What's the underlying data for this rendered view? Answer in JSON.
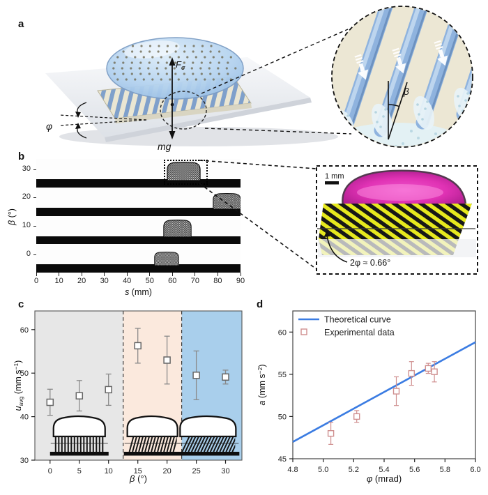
{
  "figure_labels": {
    "a": "a",
    "b": "b",
    "c": "c",
    "d": "d"
  },
  "panel_a": {
    "phi_label": "φ",
    "force_main": "F",
    "force_sub": "σ",
    "weight_label": "mg",
    "beta_label": "β"
  },
  "panel_b": {
    "ylabel_var": "β",
    "ylabel_rest": " (°)",
    "xlabel_var": "s",
    "xlabel_rest": " (mm)",
    "inset": {
      "scale_label": "1 mm",
      "angle_label": "2φ ≈ 0.66°"
    }
  },
  "panel_c_labels": {
    "ylabel_var": "u",
    "ylabel_sub": "avg",
    "ylabel_rest": " (mm s",
    "ylabel_sup": "−1",
    "ylabel_close": ")",
    "xlabel_var": "β",
    "xlabel_rest": " (°)"
  },
  "panel_d_labels": {
    "ylabel_var": "a",
    "ylabel_rest": " (mm s",
    "ylabel_sup": "−2",
    "ylabel_close": ")",
    "xlabel_var": "φ",
    "xlabel_rest": " (mrad)"
  },
  "chart_data": [
    {
      "panel": "b",
      "type": "image-strip",
      "x_label": "s (mm)",
      "y_label": "β (°)",
      "xticks": [
        0,
        10,
        20,
        30,
        40,
        50,
        60,
        70,
        80,
        90
      ],
      "xlim": [
        0,
        90
      ],
      "rows": [
        {
          "beta": 30,
          "s_mm": 65,
          "width_mm": 15
        },
        {
          "beta": 20,
          "s_mm": 84,
          "width_mm": 12.5
        },
        {
          "beta": 10,
          "s_mm": 62,
          "width_mm": 12.5
        },
        {
          "beta": 0,
          "s_mm": 57.5,
          "width_mm": 11
        }
      ],
      "highlight_beta": 30
    },
    {
      "panel": "c",
      "type": "scatter",
      "title": "",
      "xlabel": "β (°)",
      "ylabel": "uavg (mm s−1)",
      "x": [
        0,
        5,
        10,
        15,
        20,
        25,
        30
      ],
      "y": [
        43.3,
        44.8,
        46.2,
        56.3,
        53.0,
        49.5,
        49.1
      ],
      "yerr": [
        3.0,
        3.5,
        3.6,
        4.0,
        5.5,
        5.6,
        1.6
      ],
      "xlim": [
        -2.6,
        32.8
      ],
      "ylim": [
        30,
        64.3
      ],
      "xticks": [
        0,
        5,
        10,
        15,
        20,
        25,
        30
      ],
      "yticks": [
        30,
        40,
        50,
        60
      ],
      "regions": [
        {
          "from": -2.6,
          "to": 12.5,
          "color": "#e7e7e7"
        },
        {
          "from": 12.5,
          "to": 22.5,
          "color": "#fbe9dd"
        },
        {
          "from": 22.5,
          "to": 32.8,
          "color": "#a9cfec"
        }
      ],
      "separators": [
        12.5,
        22.5
      ],
      "inset_pillar_tilts_deg": [
        0,
        15,
        25
      ],
      "marker_color": "#666666",
      "errorbar_color": "#8a8a8a"
    },
    {
      "panel": "d",
      "type": "line+scatter",
      "xlabel": "φ (mrad)",
      "ylabel": "a (mm s−2)",
      "line": {
        "name": "Theoretical curve",
        "x": [
          4.8,
          6.0
        ],
        "y": [
          47.0,
          58.8
        ],
        "color": "#3b7ce2"
      },
      "points": {
        "name": "Experimental data",
        "x": [
          5.05,
          5.22,
          5.48,
          5.58,
          5.69,
          5.73
        ],
        "y": [
          48.0,
          50.0,
          53.0,
          55.1,
          55.7,
          55.3
        ],
        "yerr": [
          1.3,
          0.7,
          1.7,
          1.4,
          0.6,
          1.2
        ],
        "color": "#cf8f8f"
      },
      "xlim": [
        4.8,
        6.0
      ],
      "ylim": [
        45,
        62.5
      ],
      "xticks": [
        "4.8",
        "5.0",
        "5.2",
        "5.4",
        "5.6",
        "5.8",
        "6.0"
      ],
      "yticks": [
        45,
        50,
        55,
        60
      ],
      "legend_position": "top-left"
    }
  ]
}
